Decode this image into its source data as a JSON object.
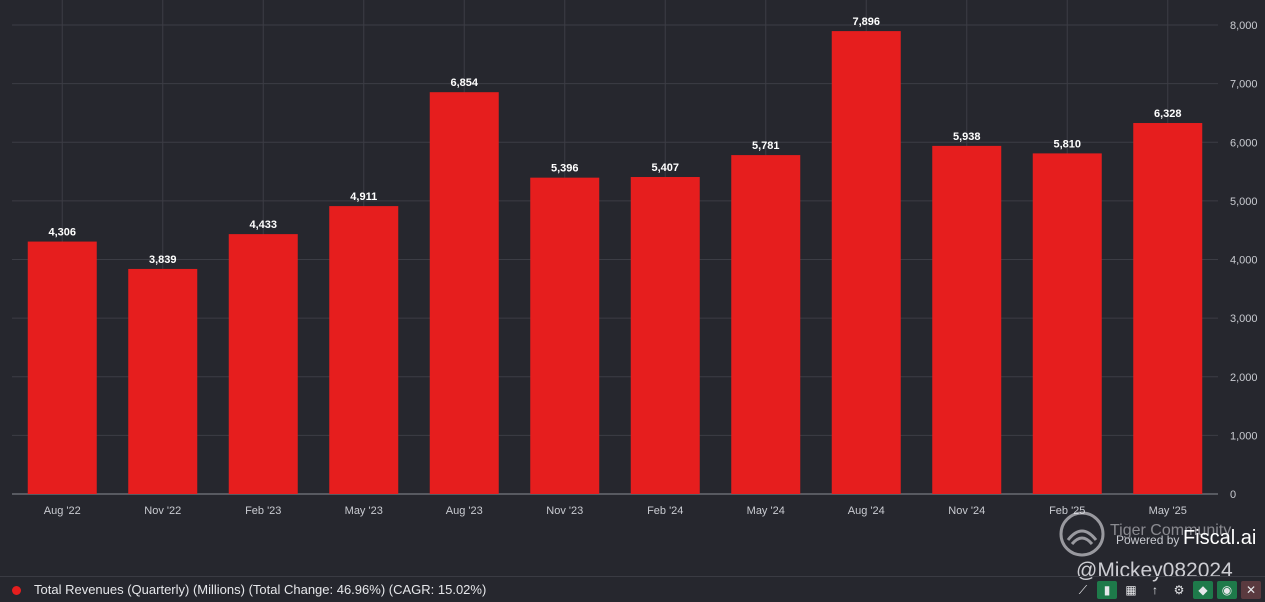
{
  "chart_data": {
    "type": "bar",
    "categories": [
      "Aug '22",
      "Nov '22",
      "Feb '23",
      "May '23",
      "Aug '23",
      "Nov '23",
      "Feb '24",
      "May '24",
      "Aug '24",
      "Nov '24",
      "Feb '25",
      "May '25"
    ],
    "values": [
      4306,
      3839,
      4433,
      4911,
      6854,
      5396,
      5407,
      5781,
      7896,
      5938,
      5810,
      6328
    ],
    "value_labels": [
      "4,306",
      "3,839",
      "4,433",
      "4,911",
      "6,854",
      "5,396",
      "5,407",
      "5,781",
      "7,896",
      "5,938",
      "5,810",
      "6,328"
    ],
    "yticks": [
      0,
      1000,
      2000,
      3000,
      4000,
      5000,
      6000,
      7000,
      8000
    ],
    "ytick_labels": [
      "0",
      "1,000",
      "2,000",
      "3,000",
      "4,000",
      "5,000",
      "6,000",
      "7,000",
      "8,000"
    ],
    "ylim": [
      0,
      8400
    ],
    "y_axis_side": "right",
    "grid": true,
    "bar_color": "#e61e1e",
    "title": "",
    "xlabel": "",
    "ylabel": ""
  },
  "legend": {
    "text": "Total Revenues (Quarterly) (Millions) (Total Change: 46.96%) (CAGR: 15.02%)",
    "color": "#e61e1e"
  },
  "watermarks": {
    "community": "Tiger Community",
    "powered_by": "Powered by",
    "brand": "Fiscal.ai",
    "user": "@Mickey082024"
  },
  "toolbar": {
    "icons": [
      "trend-line-icon",
      "bar-chart-icon",
      "bar-grid-icon",
      "sort-icon",
      "gear-icon",
      "tag-icon",
      "eye-icon",
      "close-icon"
    ],
    "glyphs": [
      "⟋",
      "▮",
      "▦",
      "↑",
      "⚙",
      "◆",
      "◉",
      "✕"
    ]
  }
}
